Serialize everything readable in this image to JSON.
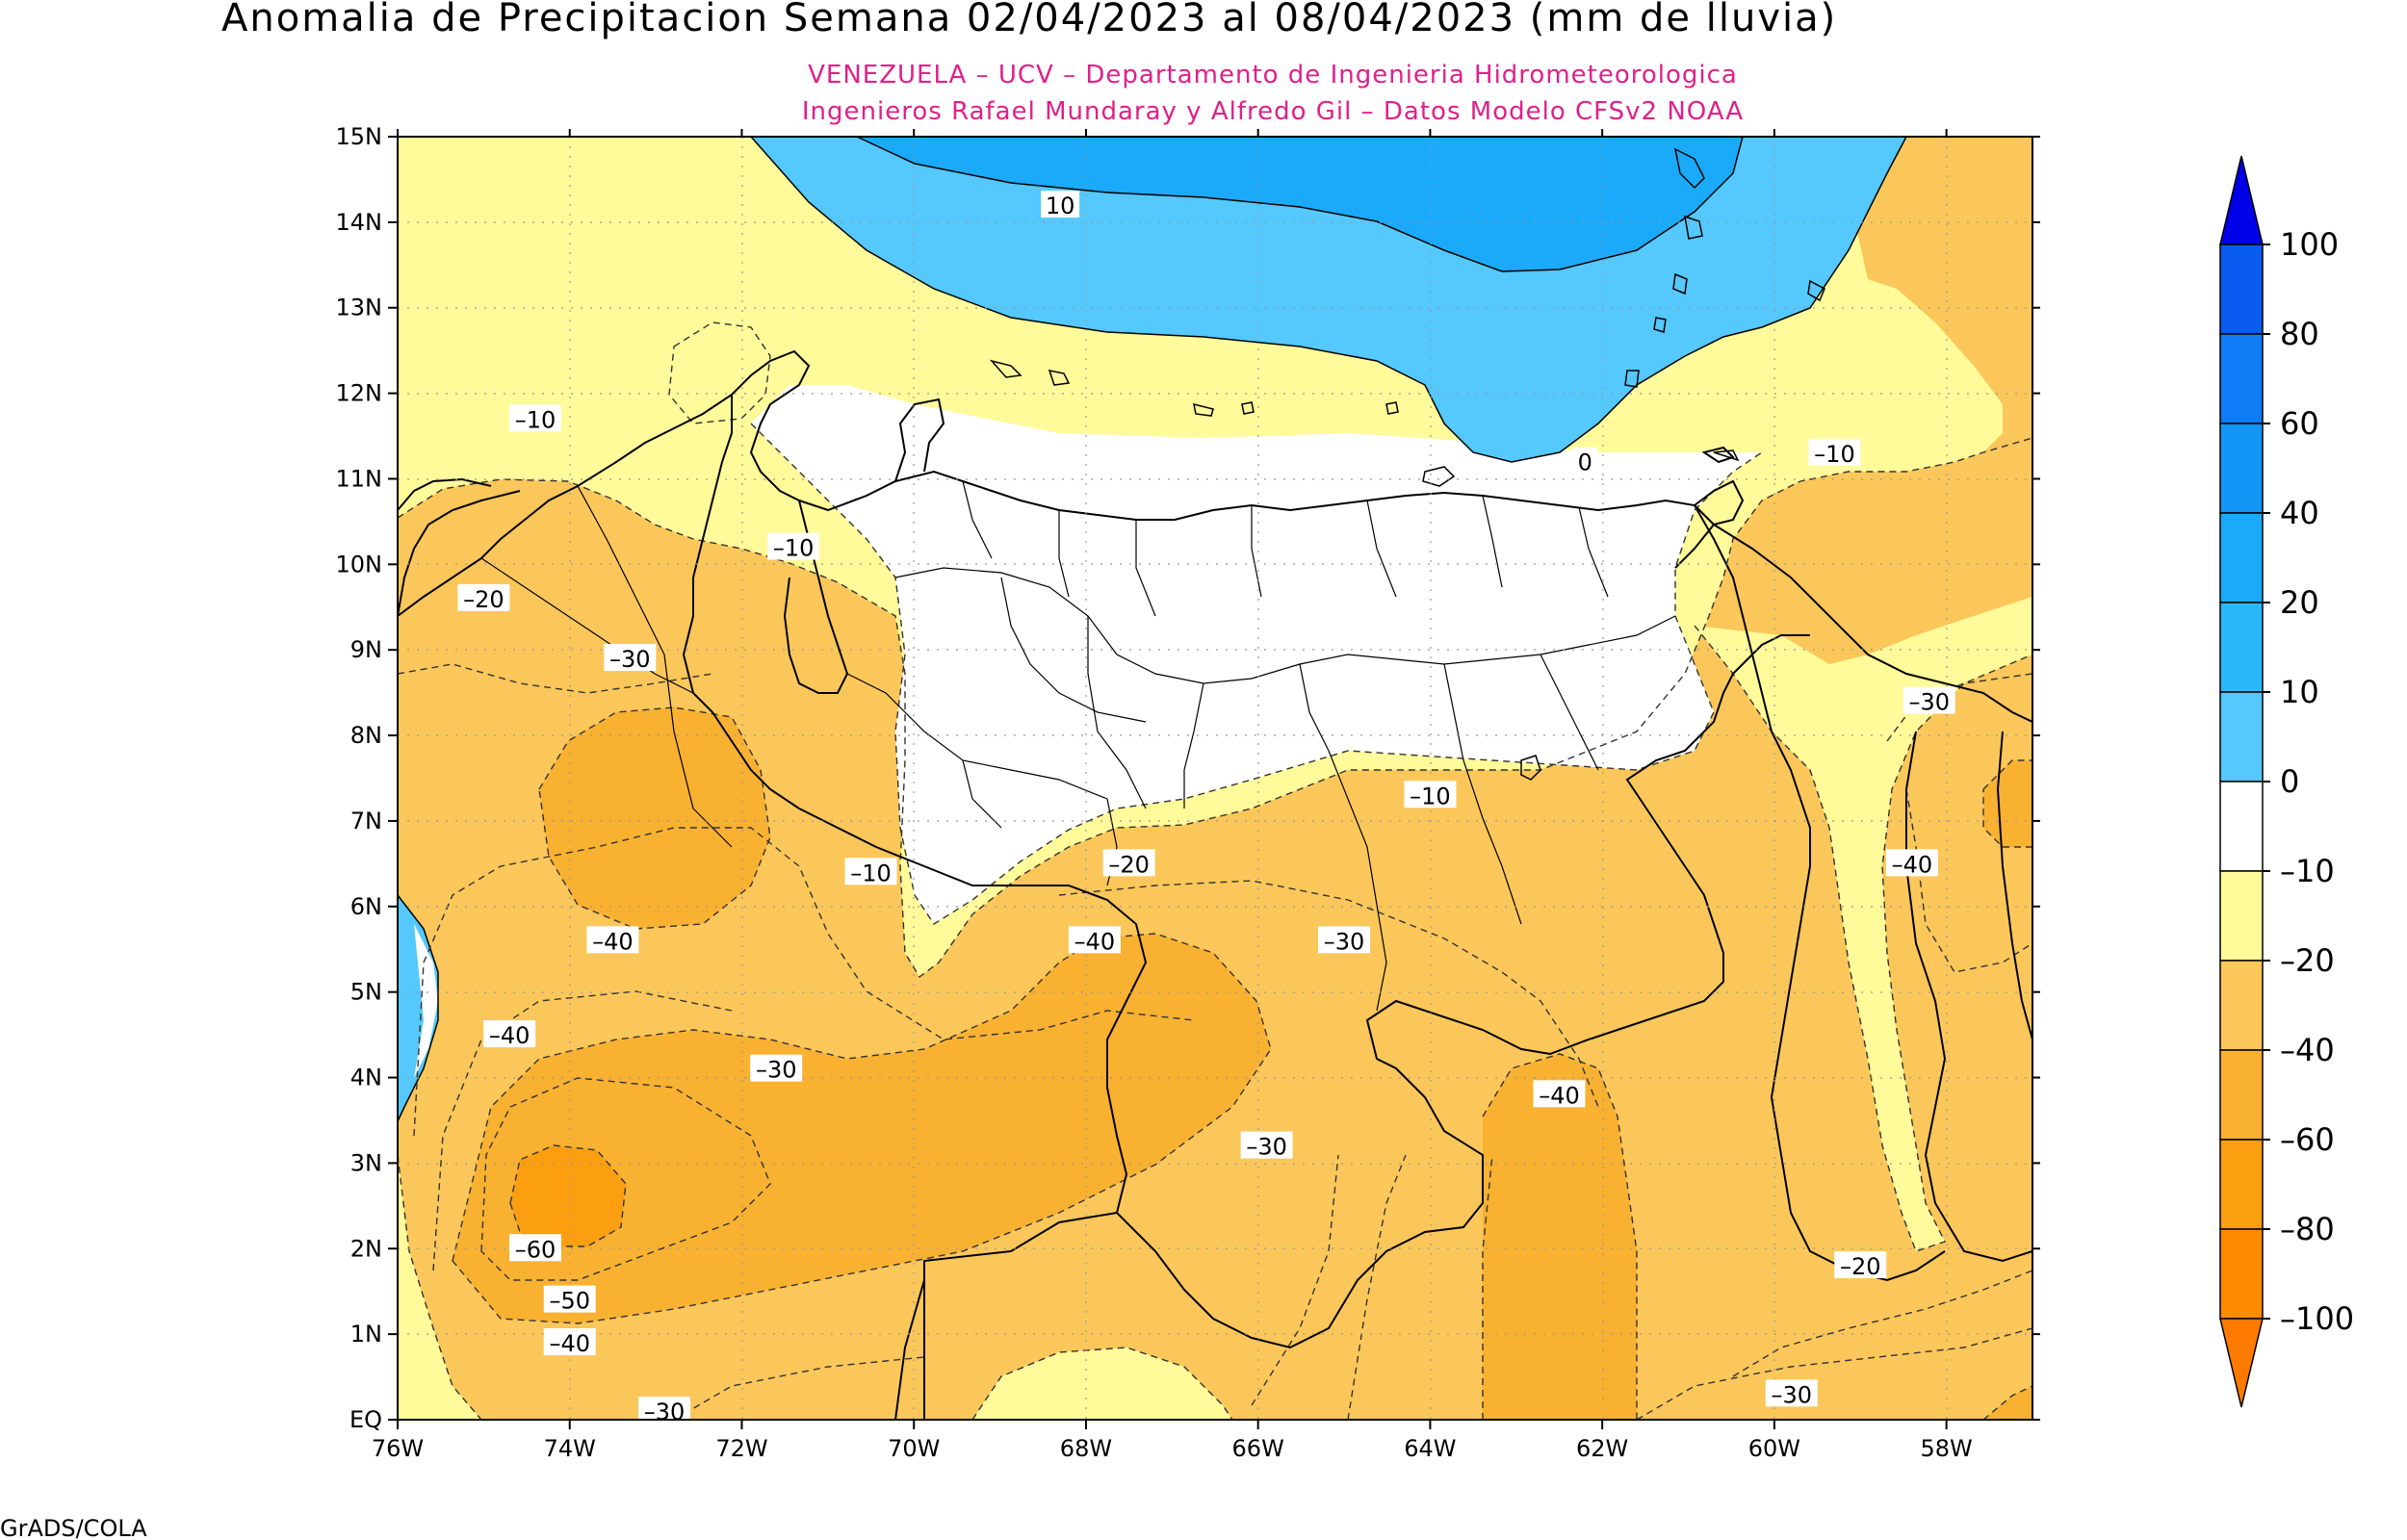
{
  "title": "Anomalia de Precipitacion Semana 02/04/2023 al 08/04/2023 (mm de lluvia)",
  "subtitle_1": "VENEZUELA – UCV – Departamento de Ingenieria Hidrometeorologica",
  "subtitle_2": "Ingenieros Rafael Mundaray y Alfredo Gil – Datos Modelo CFSv2 NOAA",
  "credit": "GrADS/COLA",
  "map": {
    "lon_range": [
      -76,
      -57
    ],
    "lat_range": [
      0,
      15
    ],
    "x_ticks": [
      "76W",
      "74W",
      "72W",
      "70W",
      "68W",
      "66W",
      "64W",
      "62W",
      "60W",
      "58W"
    ],
    "y_ticks": [
      "EQ",
      "1N",
      "2N",
      "3N",
      "4N",
      "5N",
      "6N",
      "7N",
      "8N",
      "9N",
      "10N",
      "11N",
      "12N",
      "13N",
      "14N",
      "15N"
    ],
    "contour_labels": [
      {
        "text": "10",
        "lon": -68.3,
        "lat": 14.2
      },
      {
        "text": "0",
        "lon": -62.2,
        "lat": 11.2
      },
      {
        "text": "–10",
        "lon": -74.4,
        "lat": 11.7
      },
      {
        "text": "–10",
        "lon": -71.4,
        "lat": 10.2
      },
      {
        "text": "–10",
        "lon": -59.3,
        "lat": 11.3
      },
      {
        "text": "–10",
        "lon": -64.0,
        "lat": 7.3
      },
      {
        "text": "–10",
        "lon": -70.5,
        "lat": 6.4
      },
      {
        "text": "–20",
        "lon": -75.0,
        "lat": 9.6
      },
      {
        "text": "–20",
        "lon": -67.5,
        "lat": 6.5
      },
      {
        "text": "–20",
        "lon": -59.0,
        "lat": 1.8
      },
      {
        "text": "–30",
        "lon": -73.3,
        "lat": 8.9
      },
      {
        "text": "–30",
        "lon": -58.2,
        "lat": 8.4
      },
      {
        "text": "–30",
        "lon": -65.0,
        "lat": 5.6
      },
      {
        "text": "–30",
        "lon": -71.6,
        "lat": 4.1
      },
      {
        "text": "–30",
        "lon": -65.9,
        "lat": 3.2
      },
      {
        "text": "–30",
        "lon": -59.8,
        "lat": 0.3
      },
      {
        "text": "–30",
        "lon": -72.9,
        "lat": 0.1
      },
      {
        "text": "–40",
        "lon": -73.5,
        "lat": 5.6
      },
      {
        "text": "–40",
        "lon": -74.7,
        "lat": 4.5
      },
      {
        "text": "–40",
        "lon": -74.0,
        "lat": 0.9
      },
      {
        "text": "–40",
        "lon": -67.9,
        "lat": 5.6
      },
      {
        "text": "–40",
        "lon": -62.5,
        "lat": 3.8
      },
      {
        "text": "–40",
        "lon": -58.4,
        "lat": 6.5
      },
      {
        "text": "–50",
        "lon": -74.0,
        "lat": 1.4
      },
      {
        "text": "–60",
        "lon": -74.4,
        "lat": 2.0
      }
    ]
  },
  "colorbar": {
    "labels": [
      "100",
      "80",
      "60",
      "40",
      "20",
      "10",
      "0",
      "–10",
      "–20",
      "–40",
      "–60",
      "–80",
      "–100"
    ],
    "colors": [
      "#0000e8",
      "#0a5cf0",
      "#0f7cf5",
      "#1496f6",
      "#1aaaf9",
      "#2ab8fb",
      "#55c8fd",
      "#ffffff",
      "#fffa9a",
      "#fbc75a",
      "#f9b132",
      "#fb9e10",
      "#fd8a00",
      "#ff7a00"
    ]
  }
}
